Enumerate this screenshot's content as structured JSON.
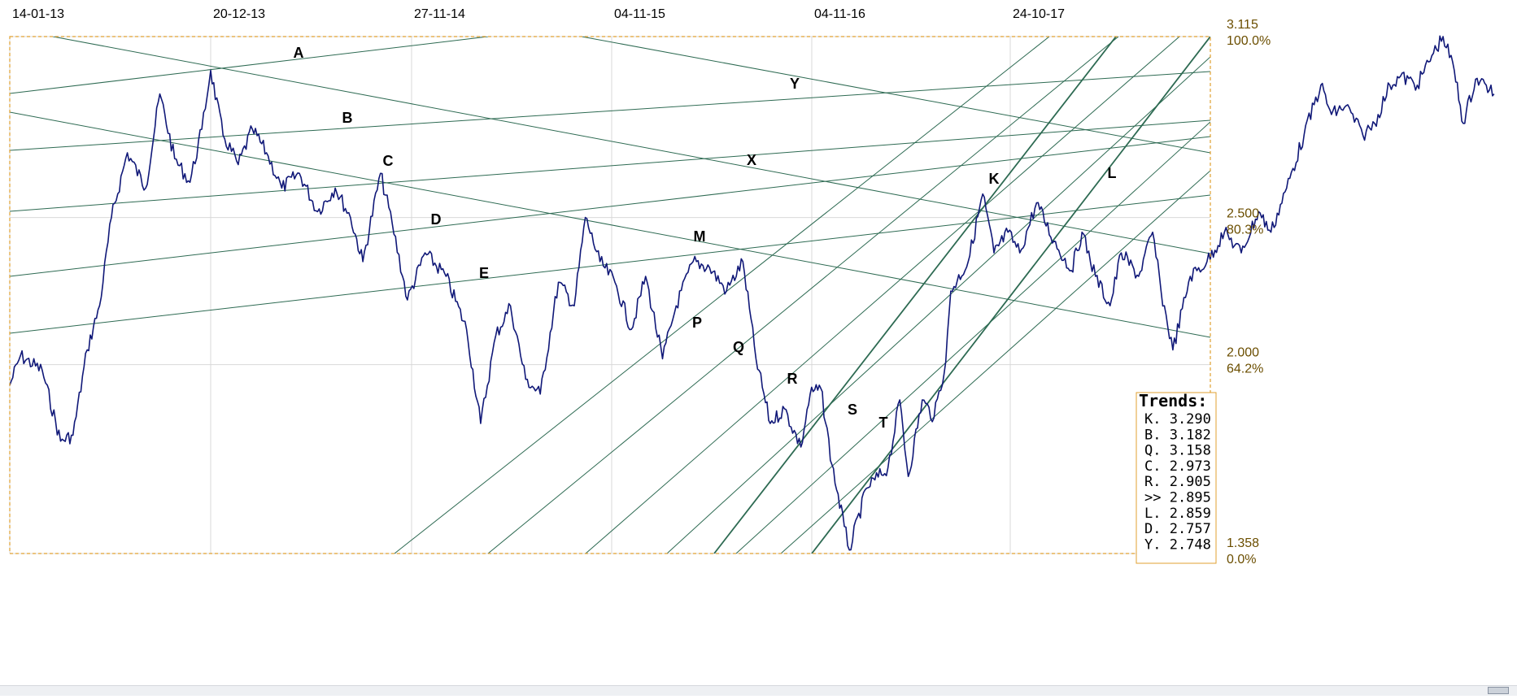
{
  "chart_data": {
    "type": "line",
    "title": "",
    "xlabel": "",
    "ylabel": "",
    "x_tick_labels": [
      "14-01-13",
      "20-12-13",
      "27-11-14",
      "04-11-15",
      "04-11-16",
      "24-10-17"
    ],
    "y_axis": {
      "min": 1.358,
      "max": 3.115,
      "ticks": [
        {
          "value": "3.115",
          "pct": "100.0%"
        },
        {
          "value": "2.500",
          "pct": "80.3%"
        },
        {
          "value": "2.000",
          "pct": "64.2%"
        },
        {
          "value": "1.358",
          "pct": "0.0%"
        }
      ]
    },
    "grid": true,
    "series": [
      {
        "color": "#101878",
        "points": [
          [
            "2013-01-14",
            1.93
          ],
          [
            "2013-02-01",
            2.03
          ],
          [
            "2013-03-10",
            1.98
          ],
          [
            "2013-04-10",
            1.74
          ],
          [
            "2013-05-01",
            1.76
          ],
          [
            "2013-05-25",
            2.05
          ],
          [
            "2013-06-15",
            2.2
          ],
          [
            "2013-07-05",
            2.5
          ],
          [
            "2013-08-01",
            2.72
          ],
          [
            "2013-09-01",
            2.6
          ],
          [
            "2013-09-25",
            2.92
          ],
          [
            "2013-10-20",
            2.7
          ],
          [
            "2013-11-15",
            2.62
          ],
          [
            "2013-12-05",
            2.8
          ],
          [
            "2013-12-20",
            3.0
          ],
          [
            "2014-01-10",
            2.78
          ],
          [
            "2014-02-05",
            2.68
          ],
          [
            "2014-03-01",
            2.8
          ],
          [
            "2014-03-25",
            2.72
          ],
          [
            "2014-04-20",
            2.6
          ],
          [
            "2014-05-20",
            2.65
          ],
          [
            "2014-06-20",
            2.52
          ],
          [
            "2014-07-20",
            2.6
          ],
          [
            "2014-08-15",
            2.5
          ],
          [
            "2014-09-05",
            2.35
          ],
          [
            "2014-10-05",
            2.65
          ],
          [
            "2014-10-25",
            2.48
          ],
          [
            "2014-11-20",
            2.22
          ],
          [
            "2014-12-20",
            2.38
          ],
          [
            "2015-01-25",
            2.3
          ],
          [
            "2015-03-01",
            2.12
          ],
          [
            "2015-03-25",
            1.8
          ],
          [
            "2015-04-20",
            2.1
          ],
          [
            "2015-05-15",
            2.2
          ],
          [
            "2015-06-10",
            1.95
          ],
          [
            "2015-07-05",
            1.9
          ],
          [
            "2015-08-05",
            2.28
          ],
          [
            "2015-09-01",
            2.2
          ],
          [
            "2015-09-20",
            2.5
          ],
          [
            "2015-10-15",
            2.35
          ],
          [
            "2015-11-10",
            2.28
          ],
          [
            "2015-12-10",
            2.12
          ],
          [
            "2016-01-05",
            2.3
          ],
          [
            "2016-02-05",
            2.02
          ],
          [
            "2016-03-01",
            2.2
          ],
          [
            "2016-04-01",
            2.35
          ],
          [
            "2016-05-01",
            2.33
          ],
          [
            "2016-06-01",
            2.25
          ],
          [
            "2016-07-01",
            2.35
          ],
          [
            "2016-07-25",
            2.02
          ],
          [
            "2016-08-20",
            1.8
          ],
          [
            "2016-09-15",
            1.85
          ],
          [
            "2016-10-15",
            1.72
          ],
          [
            "2016-11-01",
            1.9
          ],
          [
            "2016-11-20",
            1.92
          ],
          [
            "2016-12-10",
            1.66
          ],
          [
            "2017-01-01",
            1.45
          ],
          [
            "2017-01-10",
            1.37
          ],
          [
            "2017-02-10",
            1.58
          ],
          [
            "2017-03-20",
            1.65
          ],
          [
            "2017-04-10",
            1.88
          ],
          [
            "2017-04-25",
            1.62
          ],
          [
            "2017-05-20",
            1.88
          ],
          [
            "2017-06-10",
            1.82
          ],
          [
            "2017-07-01",
            2.01
          ],
          [
            "2017-07-10",
            2.25
          ],
          [
            "2017-08-10",
            2.35
          ],
          [
            "2017-09-05",
            2.58
          ],
          [
            "2017-09-25",
            2.38
          ],
          [
            "2017-10-20",
            2.45
          ],
          [
            "2017-11-10",
            2.38
          ],
          [
            "2017-12-10",
            2.55
          ],
          [
            "2018-01-10",
            2.42
          ],
          [
            "2018-02-10",
            2.32
          ],
          [
            "2018-03-01",
            2.45
          ],
          [
            "2018-03-25",
            2.3
          ],
          [
            "2018-04-20",
            2.2
          ],
          [
            "2018-05-10",
            2.38
          ],
          [
            "2018-06-10",
            2.3
          ],
          [
            "2018-07-05",
            2.45
          ],
          [
            "2018-07-20",
            2.25
          ],
          [
            "2018-08-10",
            2.05
          ],
          [
            "2018-09-10",
            2.3
          ],
          [
            "2018-10-10",
            2.35
          ],
          [
            "2018-11-10",
            2.45
          ],
          [
            "2018-12-10",
            2.38
          ],
          [
            "2019-01-10",
            2.52
          ],
          [
            "2019-02-01",
            2.45
          ],
          [
            "2019-03-01",
            2.6
          ],
          [
            "2019-04-01",
            2.78
          ],
          [
            "2019-05-01",
            2.95
          ],
          [
            "2019-05-20",
            2.85
          ],
          [
            "2019-06-15",
            2.88
          ],
          [
            "2019-07-15",
            2.78
          ],
          [
            "2019-08-05",
            2.82
          ],
          [
            "2019-09-01",
            2.95
          ],
          [
            "2019-09-20",
            2.98
          ],
          [
            "2019-10-20",
            2.95
          ],
          [
            "2019-11-15",
            3.05
          ],
          [
            "2019-12-05",
            3.115
          ],
          [
            "2019-12-25",
            3.0
          ],
          [
            "2020-01-10",
            2.82
          ],
          [
            "2020-02-01",
            2.97
          ],
          [
            "2020-02-20",
            2.95
          ],
          [
            "2020-03-05",
            2.92
          ]
        ]
      }
    ],
    "trend_labels": [
      "A",
      "B",
      "C",
      "D",
      "E",
      "M",
      "X",
      "Y",
      "K",
      "L",
      "P",
      "Q",
      "R",
      "S",
      "T"
    ],
    "legend": {
      "title": "Trends:",
      "position": "bottom-right",
      "items": [
        {
          "key": "K.",
          "value": "3.290"
        },
        {
          "key": "B.",
          "value": "3.182"
        },
        {
          "key": "Q.",
          "value": "3.158"
        },
        {
          "key": "C.",
          "value": "2.973"
        },
        {
          "key": "R.",
          "value": "2.905"
        },
        {
          "key": ">>",
          "value": "2.895"
        },
        {
          "key": "L.",
          "value": "2.859"
        },
        {
          "key": "D.",
          "value": "2.757"
        },
        {
          "key": "Y.",
          "value": "2.748"
        }
      ]
    }
  },
  "colors": {
    "price_line": "#101878",
    "trend_line": "#2d6a52",
    "plot_border": "#e0a030",
    "grid": "#d8d8d8",
    "axis_value_text": "#6b4e00"
  }
}
